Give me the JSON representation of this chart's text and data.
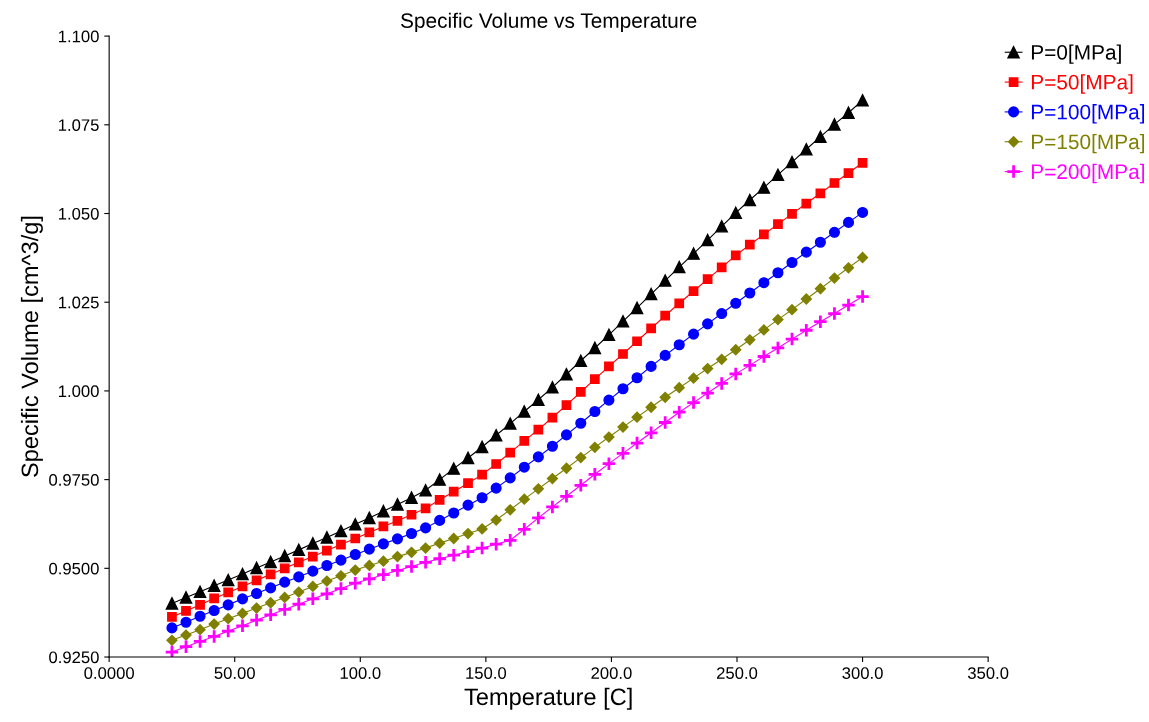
{
  "chart_data": {
    "type": "line",
    "title": "Specific Volume vs Temperature",
    "xlabel": "Temperature [C]",
    "ylabel": "Specific Volume [cm^3/g]",
    "x": [
      25.0,
      30.6,
      36.2,
      41.8,
      47.4,
      53.1,
      58.7,
      64.3,
      69.9,
      75.5,
      81.1,
      86.7,
      92.3,
      98.0,
      103.6,
      109.2,
      114.8,
      120.4,
      126.0,
      131.6,
      137.2,
      142.9,
      148.5,
      154.1,
      159.7,
      165.3,
      170.9,
      176.5,
      182.1,
      187.8,
      193.4,
      199.0,
      204.6,
      210.2,
      215.8,
      221.4,
      227.0,
      232.7,
      238.3,
      243.9,
      249.5,
      255.1,
      260.7,
      266.3,
      271.9,
      277.6,
      283.2,
      288.8,
      294.4,
      300.0
    ],
    "series": [
      {
        "name": "P=0[MPa]",
        "color": "#000000",
        "marker": "triangle",
        "values": [
          0.9401,
          0.9418,
          0.9434,
          0.9451,
          0.9467,
          0.9484,
          0.9501,
          0.9518,
          0.9535,
          0.9552,
          0.957,
          0.9587,
          0.9605,
          0.9624,
          0.9642,
          0.9661,
          0.968,
          0.9699,
          0.972,
          0.975,
          0.9781,
          0.9811,
          0.9842,
          0.9875,
          0.9908,
          0.9942,
          0.9975,
          1.001,
          1.0047,
          1.0085,
          1.0121,
          1.0158,
          1.0196,
          1.0234,
          1.0273,
          1.0311,
          1.0349,
          1.0387,
          1.0425,
          1.0464,
          1.0502,
          1.0538,
          1.0573,
          1.0609,
          1.0645,
          1.0681,
          1.0716,
          1.0751,
          1.0784,
          1.0819
        ]
      },
      {
        "name": "P=50[MPa]",
        "color": "#ff0000",
        "marker": "square",
        "values": [
          0.9363,
          0.938,
          0.9397,
          0.9415,
          0.9432,
          0.9449,
          0.9466,
          0.9483,
          0.95,
          0.9517,
          0.9533,
          0.955,
          0.9567,
          0.9584,
          0.9601,
          0.9618,
          0.9634,
          0.9651,
          0.9669,
          0.9693,
          0.9716,
          0.974,
          0.9764,
          0.9794,
          0.9826,
          0.9859,
          0.9891,
          0.9925,
          0.996,
          0.9997,
          1.0033,
          1.0069,
          1.0104,
          1.014,
          1.0176,
          1.0212,
          1.0247,
          1.0281,
          1.0315,
          1.0348,
          1.0382,
          1.0412,
          1.0441,
          1.047,
          1.0499,
          1.0528,
          1.0557,
          1.0586,
          1.0614,
          1.0643
        ]
      },
      {
        "name": "P=100[MPa]",
        "color": "#0000ff",
        "marker": "circle",
        "values": [
          0.9332,
          0.9348,
          0.9365,
          0.9381,
          0.9397,
          0.9414,
          0.9429,
          0.9445,
          0.9461,
          0.9476,
          0.9492,
          0.9508,
          0.9523,
          0.9539,
          0.9554,
          0.9569,
          0.9583,
          0.9598,
          0.9614,
          0.9635,
          0.9656,
          0.9678,
          0.9699,
          0.9726,
          0.9755,
          0.9785,
          0.9814,
          0.9844,
          0.9876,
          0.9909,
          0.9942,
          0.9974,
          1.0006,
          1.0037,
          1.0069,
          1.01,
          1.013,
          1.016,
          1.0189,
          1.0218,
          1.0247,
          1.0276,
          1.0305,
          1.0333,
          1.0362,
          1.0391,
          1.0419,
          1.0447,
          1.0475,
          1.0503
        ]
      },
      {
        "name": "P=150[MPa]",
        "color": "#808000",
        "marker": "diamond",
        "values": [
          0.9297,
          0.9312,
          0.9327,
          0.9343,
          0.9358,
          0.9373,
          0.9388,
          0.9403,
          0.9418,
          0.9433,
          0.9449,
          0.9464,
          0.9479,
          0.9495,
          0.9508,
          0.952,
          0.9533,
          0.9545,
          0.9557,
          0.9571,
          0.9584,
          0.9598,
          0.9611,
          0.9636,
          0.9665,
          0.9695,
          0.9724,
          0.9753,
          0.9782,
          0.9812,
          0.9841,
          0.987,
          0.9898,
          0.9926,
          0.9954,
          0.9982,
          1.0009,
          1.0036,
          1.0063,
          1.0089,
          1.0116,
          1.0144,
          1.0172,
          1.0201,
          1.0229,
          1.0259,
          1.0288,
          1.0318,
          1.0347,
          1.0376
        ]
      },
      {
        "name": "P=200[MPa]",
        "color": "#ff00ff",
        "marker": "cross",
        "values": [
          0.9264,
          0.9279,
          0.9294,
          0.9308,
          0.9323,
          0.9338,
          0.9354,
          0.9369,
          0.9384,
          0.9399,
          0.9414,
          0.9428,
          0.9443,
          0.9458,
          0.947,
          0.9482,
          0.9494,
          0.9505,
          0.9517,
          0.9527,
          0.9537,
          0.9547,
          0.9557,
          0.9568,
          0.9579,
          0.961,
          0.9642,
          0.9673,
          0.9703,
          0.9734,
          0.9765,
          0.9795,
          0.9824,
          0.9853,
          0.9882,
          0.9911,
          0.994,
          0.9967,
          0.9994,
          1.0021,
          1.0048,
          1.0072,
          1.0097,
          1.0121,
          1.0146,
          1.0171,
          1.0195,
          1.0218,
          1.0242,
          1.0266
        ]
      }
    ],
    "xlim": [
      0,
      350
    ],
    "xticks": [
      {
        "value": 0,
        "label": "0.0000"
      },
      {
        "value": 50,
        "label": "50.00"
      },
      {
        "value": 100,
        "label": "100.0"
      },
      {
        "value": 150,
        "label": "150.0"
      },
      {
        "value": 200,
        "label": "200.0"
      },
      {
        "value": 250,
        "label": "250.0"
      },
      {
        "value": 300,
        "label": "300.0"
      },
      {
        "value": 350,
        "label": "350.0"
      }
    ],
    "ylim": [
      0.925,
      1.1
    ],
    "yticks": [
      {
        "value": 0.925,
        "label": "0.9250"
      },
      {
        "value": 0.95,
        "label": "0.9500"
      },
      {
        "value": 0.975,
        "label": "0.9750"
      },
      {
        "value": 1.0,
        "label": "1.000"
      },
      {
        "value": 1.025,
        "label": "1.025"
      },
      {
        "value": 1.05,
        "label": "1.050"
      },
      {
        "value": 1.075,
        "label": "1.075"
      },
      {
        "value": 1.1,
        "label": "1.100"
      }
    ],
    "grid": false,
    "legend": "top right",
    "line_style": "solid"
  }
}
